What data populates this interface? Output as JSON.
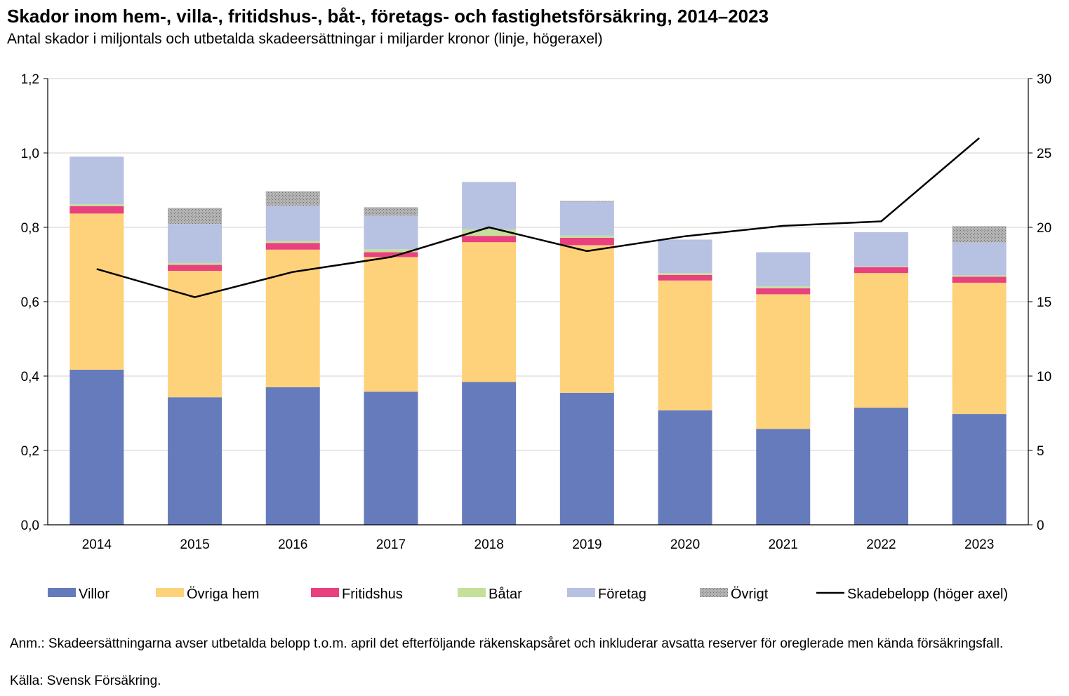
{
  "title": "Skador inom hem-, villa-, fritidshus-, båt-, företags- och fastighetsförsäkring, 2014–2023",
  "subtitle": "Antal skador i miljontals och utbetalda skadeersättningar i miljarder kronor (linje, högeraxel)",
  "notes": {
    "anm": "Anm.: Skadeersättningarna avser utbetalda belopp t.o.m. april det efterföljande räkenskapsåret och inkluderar avsatta reserver för oreglerade men kända försäkringsfall.",
    "kalla": "Källa: Svensk Försäkring."
  },
  "chart_data": {
    "type": "bar",
    "stacked": true,
    "categories": [
      "2014",
      "2015",
      "2016",
      "2017",
      "2018",
      "2019",
      "2020",
      "2021",
      "2022",
      "2023"
    ],
    "ylim": [
      0,
      1.2
    ],
    "y_ticks": [
      "0,0",
      "0,2",
      "0,4",
      "0,6",
      "0,8",
      "1,0",
      "1,2"
    ],
    "y_tick_values": [
      0,
      0.2,
      0.4,
      0.6,
      0.8,
      1.0,
      1.2
    ],
    "y2lim": [
      0,
      30
    ],
    "y2_ticks": [
      "0",
      "5",
      "10",
      "15",
      "20",
      "25",
      "30"
    ],
    "y2_tick_values": [
      0,
      5,
      10,
      15,
      20,
      25,
      30
    ],
    "grid": true,
    "legend_position": "bottom",
    "series": [
      {
        "name": "Villor",
        "color": "#667BBC",
        "values": [
          0.417,
          0.343,
          0.37,
          0.358,
          0.384,
          0.355,
          0.308,
          0.258,
          0.315,
          0.298
        ]
      },
      {
        "name": "Övriga hem",
        "color": "#FED27B",
        "values": [
          0.42,
          0.34,
          0.37,
          0.362,
          0.376,
          0.397,
          0.349,
          0.362,
          0.362,
          0.353
        ]
      },
      {
        "name": "Fritidshus",
        "color": "#E9417F",
        "values": [
          0.02,
          0.016,
          0.018,
          0.013,
          0.017,
          0.02,
          0.015,
          0.016,
          0.016,
          0.016
        ]
      },
      {
        "name": "Båtar",
        "color": "#C5E09A",
        "values": [
          0.005,
          0.005,
          0.005,
          0.008,
          0.017,
          0.006,
          0.005,
          0.005,
          0.002,
          0.004
        ]
      },
      {
        "name": "Företag",
        "color": "#B7C1E1",
        "values": [
          0.128,
          0.105,
          0.094,
          0.09,
          0.128,
          0.09,
          0.09,
          0.092,
          0.092,
          0.088
        ]
      },
      {
        "name": "Övrigt",
        "color": "#A9A9A9",
        "pattern": "dotted",
        "values": [
          0.0,
          0.043,
          0.04,
          0.023,
          0.0,
          0.003,
          0.0,
          0.0,
          0.0,
          0.044
        ]
      }
    ],
    "line_series": {
      "name": "Skadebelopp (höger axel)",
      "axis": "right",
      "color": "#000000",
      "values": [
        17.2,
        15.3,
        17.0,
        18.0,
        20.0,
        18.4,
        19.4,
        20.1,
        20.4,
        26.0
      ]
    }
  }
}
